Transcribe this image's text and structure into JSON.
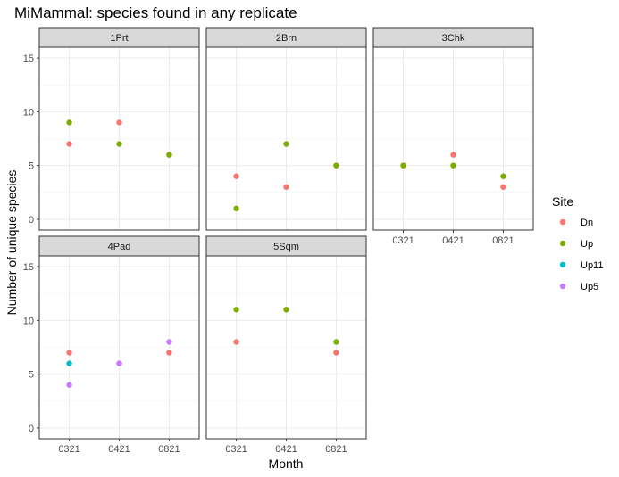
{
  "chart_data": {
    "type": "scatter",
    "title": "MiMammal: species found in any replicate",
    "xlabel": "Month",
    "ylabel": "Number of unique species",
    "categories": [
      "0321",
      "0421",
      "0821"
    ],
    "ylim": [
      -1,
      16
    ],
    "yticks": [
      0,
      5,
      10,
      15
    ],
    "grid": true,
    "legend": {
      "title": "Site",
      "position": "right",
      "entries": [
        {
          "name": "Dn",
          "color": "#F8766D"
        },
        {
          "name": "Up",
          "color": "#7CAE00"
        },
        {
          "name": "Up11",
          "color": "#00BFC4"
        },
        {
          "name": "Up5",
          "color": "#C77CFF"
        }
      ]
    },
    "panels": [
      {
        "name": "1Prt",
        "series": [
          {
            "name": "Dn",
            "values": [
              7,
              9,
              6
            ]
          },
          {
            "name": "Up",
            "values": [
              9,
              7,
              6
            ]
          }
        ]
      },
      {
        "name": "2Brn",
        "series": [
          {
            "name": "Dn",
            "values": [
              4,
              3,
              5
            ]
          },
          {
            "name": "Up",
            "values": [
              1,
              7,
              5
            ]
          }
        ]
      },
      {
        "name": "3Chk",
        "series": [
          {
            "name": "Dn",
            "values": [
              5,
              6,
              3
            ]
          },
          {
            "name": "Up",
            "values": [
              5,
              5,
              4
            ]
          }
        ]
      },
      {
        "name": "4Pad",
        "series": [
          {
            "name": "Dn",
            "values": [
              7,
              6,
              7
            ]
          },
          {
            "name": "Up11",
            "values": [
              6,
              null,
              null
            ]
          },
          {
            "name": "Up5",
            "values": [
              4,
              6,
              8
            ]
          }
        ]
      },
      {
        "name": "5Sqm",
        "series": [
          {
            "name": "Dn",
            "values": [
              8,
              11,
              7
            ]
          },
          {
            "name": "Up",
            "values": [
              11,
              11,
              8
            ]
          }
        ]
      }
    ]
  }
}
